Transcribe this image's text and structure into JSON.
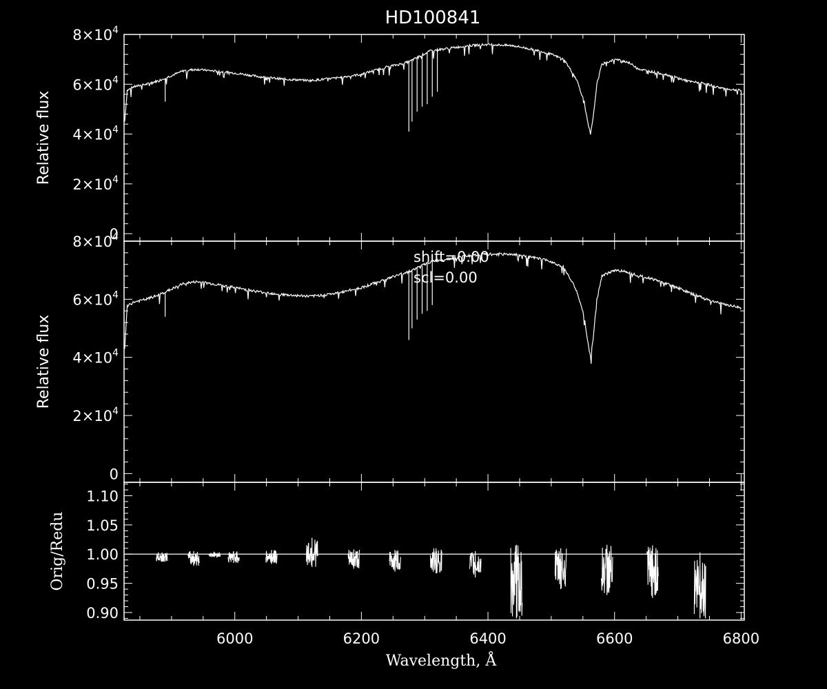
{
  "chart_data": [
    {
      "type": "line",
      "title": "HD100841",
      "ylabel": "Relative flux",
      "xlim": [
        5825,
        6805
      ],
      "ylim": [
        -3000,
        80000
      ],
      "y_ticks": [
        {
          "value": 0,
          "label": "0"
        },
        {
          "value": 20000,
          "label": "2×10^4"
        },
        {
          "value": 40000,
          "label": "4×10^4"
        },
        {
          "value": 60000,
          "label": "6×10^4"
        },
        {
          "value": 80000,
          "label": "8×10^4"
        }
      ],
      "series": [
        {
          "x": [
            5826,
            5830,
            5840,
            5860,
            5880,
            5900,
            5920,
            5940,
            5960,
            6000,
            6040,
            6080,
            6120,
            6160,
            6200,
            6240,
            6260,
            6275,
            6290,
            6310,
            6340,
            6370,
            6400,
            6440,
            6480,
            6500,
            6520,
            6540,
            6552,
            6558,
            6562,
            6566,
            6572,
            6580,
            6600,
            6620,
            6640,
            6660,
            6680,
            6700,
            6720,
            6740,
            6760,
            6780,
            6800
          ],
          "y": [
            45000,
            57500,
            59000,
            60000,
            61500,
            63500,
            65500,
            66000,
            65500,
            64500,
            63000,
            62000,
            61500,
            62500,
            64000,
            67000,
            68000,
            69000,
            71000,
            73500,
            74500,
            75500,
            76000,
            75500,
            73500,
            72000,
            70000,
            62000,
            53000,
            44000,
            40000,
            46000,
            60000,
            68000,
            70000,
            69000,
            66000,
            65000,
            64000,
            62500,
            61000,
            60500,
            59000,
            58000,
            57500
          ]
        }
      ],
      "absorption_lines": [
        {
          "x": 5890,
          "y": 53000
        },
        {
          "x": 6275,
          "y": 41000
        },
        {
          "x": 6280,
          "y": 45000
        },
        {
          "x": 6288,
          "y": 49000
        },
        {
          "x": 6296,
          "y": 51000
        },
        {
          "x": 6304,
          "y": 52000
        },
        {
          "x": 6312,
          "y": 55000
        },
        {
          "x": 6320,
          "y": 57000
        }
      ]
    },
    {
      "type": "line",
      "ylabel": "Relative flux",
      "xlim": [
        5825,
        6805
      ],
      "ylim": [
        -3000,
        80000
      ],
      "annotation_lines": [
        "shift=0.00",
        "scl=0.00"
      ],
      "y_ticks": [
        {
          "value": 0,
          "label": "0"
        },
        {
          "value": 20000,
          "label": "2×10^4"
        },
        {
          "value": 40000,
          "label": "4×10^4"
        },
        {
          "value": 60000,
          "label": "6×10^4"
        },
        {
          "value": 80000,
          "label": "8×10^4"
        }
      ],
      "series": [
        {
          "x": [
            5826,
            5830,
            5840,
            5860,
            5880,
            5900,
            5920,
            5940,
            5960,
            6000,
            6040,
            6080,
            6120,
            6160,
            6200,
            6240,
            6260,
            6275,
            6290,
            6310,
            6340,
            6370,
            6400,
            6440,
            6480,
            6500,
            6520,
            6540,
            6552,
            6558,
            6562,
            6566,
            6572,
            6580,
            6600,
            6620,
            6640,
            6660,
            6680,
            6700,
            6720,
            6740,
            6760,
            6780,
            6800
          ],
          "y": [
            43000,
            57500,
            59000,
            60000,
            61500,
            63500,
            65500,
            66000,
            65500,
            64000,
            62500,
            61500,
            61000,
            62000,
            64000,
            67000,
            68500,
            69500,
            71000,
            73000,
            74000,
            75000,
            75500,
            75500,
            74000,
            73000,
            71000,
            63000,
            54000,
            45000,
            40000,
            46000,
            60000,
            68000,
            70000,
            69500,
            68000,
            67000,
            65500,
            64000,
            62000,
            60500,
            59000,
            58000,
            57000
          ]
        }
      ],
      "absorption_lines": [
        {
          "x": 5890,
          "y": 54000
        },
        {
          "x": 6275,
          "y": 46000
        },
        {
          "x": 6280,
          "y": 50000
        },
        {
          "x": 6288,
          "y": 53000
        },
        {
          "x": 6296,
          "y": 55000
        },
        {
          "x": 6304,
          "y": 56000
        },
        {
          "x": 6312,
          "y": 58000
        }
      ]
    },
    {
      "type": "line",
      "ylabel": "Orig/Redu",
      "xlabel": "Wavelength, Å",
      "xlim": [
        5825,
        6805
      ],
      "ylim": [
        0.887,
        1.123
      ],
      "x_ticks": [
        {
          "value": 6000,
          "label": "6000"
        },
        {
          "value": 6200,
          "label": "6200"
        },
        {
          "value": 6400,
          "label": "6400"
        },
        {
          "value": 6600,
          "label": "6600"
        },
        {
          "value": 6800,
          "label": "6800"
        }
      ],
      "y_ticks": [
        {
          "value": 0.9,
          "label": "0.90"
        },
        {
          "value": 0.95,
          "label": "0.95"
        },
        {
          "value": 1.0,
          "label": "1.00"
        },
        {
          "value": 1.05,
          "label": "1.05"
        },
        {
          "value": 1.1,
          "label": "1.10"
        }
      ],
      "baseline": 1.0,
      "x_start": 5826,
      "x_end": 6800,
      "features": [
        {
          "x": 5885,
          "min": 0.987,
          "max": 1.003
        },
        {
          "x": 5935,
          "min": 0.98,
          "max": 1.005
        },
        {
          "x": 5968,
          "min": 0.995,
          "max": 1.003
        },
        {
          "x": 5998,
          "min": 0.985,
          "max": 1.005
        },
        {
          "x": 6058,
          "min": 0.983,
          "max": 1.007
        },
        {
          "x": 6122,
          "min": 0.978,
          "max": 1.028
        },
        {
          "x": 6188,
          "min": 0.975,
          "max": 1.008
        },
        {
          "x": 6253,
          "min": 0.97,
          "max": 1.007
        },
        {
          "x": 6318,
          "min": 0.967,
          "max": 1.01
        },
        {
          "x": 6380,
          "min": 0.96,
          "max": 1.005
        },
        {
          "x": 6445,
          "min": 0.89,
          "max": 1.016
        },
        {
          "x": 6515,
          "min": 0.94,
          "max": 1.01
        },
        {
          "x": 6588,
          "min": 0.93,
          "max": 1.016
        },
        {
          "x": 6660,
          "min": 0.925,
          "max": 1.015
        },
        {
          "x": 6735,
          "min": 0.89,
          "max": 1.003
        }
      ]
    }
  ]
}
